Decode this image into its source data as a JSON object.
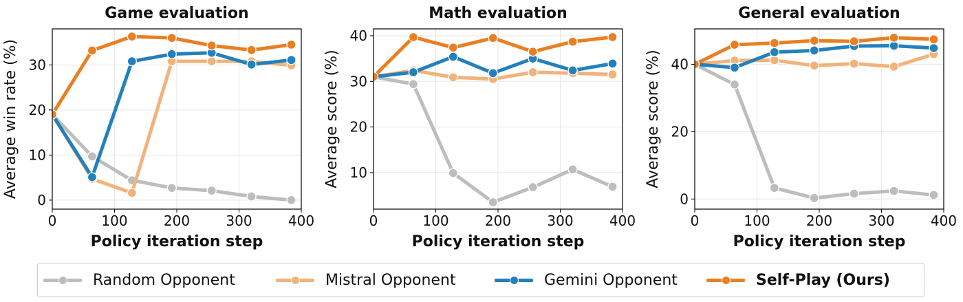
{
  "colors": {
    "random": "#bdbdbd",
    "mistral": "#f2b27a",
    "gemini": "#2380bd",
    "selfplay": "#ea7f22"
  },
  "legend": {
    "items": [
      {
        "key": "random",
        "label": "Random Opponent",
        "bold": false
      },
      {
        "key": "mistral",
        "label": "Mistral Opponent",
        "bold": false
      },
      {
        "key": "gemini",
        "label": "Gemini Opponent",
        "bold": false
      },
      {
        "key": "selfplay",
        "label": "Self-Play (Ours)",
        "bold": true
      }
    ]
  },
  "chart_data": [
    {
      "type": "line",
      "title": "Game evaluation",
      "xlabel": "Policy iteration step",
      "ylabel": "Average win rate (%)",
      "xlim": [
        0,
        400
      ],
      "ylim": [
        -2,
        38
      ],
      "xticks": [
        0,
        100,
        200,
        300,
        400
      ],
      "yticks": [
        0,
        10,
        20,
        30
      ],
      "grid": true,
      "series": [
        {
          "name": "Random Opponent",
          "key": "random",
          "points": [
            [
              0,
              19
            ],
            [
              64,
              9.7
            ],
            [
              128,
              4.4
            ],
            [
              192,
              2.7
            ],
            [
              256,
              2.1
            ],
            [
              320,
              0.8
            ],
            [
              384,
              0.0
            ]
          ]
        },
        {
          "name": "Mistral Opponent",
          "key": "mistral",
          "points": [
            [
              0,
              19
            ],
            [
              64,
              4.7
            ],
            [
              128,
              1.6
            ],
            [
              192,
              30.8
            ],
            [
              256,
              30.8
            ],
            [
              320,
              30.8
            ],
            [
              384,
              29.9
            ]
          ]
        },
        {
          "name": "Gemini Opponent",
          "key": "gemini",
          "points": [
            [
              0,
              19
            ],
            [
              64,
              5.1
            ],
            [
              128,
              30.8
            ],
            [
              192,
              32.4
            ],
            [
              256,
              32.7
            ],
            [
              320,
              30.1
            ],
            [
              384,
              31.1
            ]
          ]
        },
        {
          "name": "Self-Play (Ours)",
          "key": "selfplay",
          "points": [
            [
              0,
              19
            ],
            [
              64,
              33.2
            ],
            [
              128,
              36.3
            ],
            [
              192,
              36.0
            ],
            [
              256,
              34.3
            ],
            [
              320,
              33.3
            ],
            [
              384,
              34.5
            ]
          ]
        }
      ]
    },
    {
      "type": "line",
      "title": "Math evaluation",
      "xlabel": "Policy iteration step",
      "ylabel": "Average score (%)",
      "xlim": [
        0,
        400
      ],
      "ylim": [
        2,
        41.5
      ],
      "xticks": [
        0,
        100,
        200,
        300,
        400
      ],
      "yticks": [
        10,
        20,
        30,
        40
      ],
      "grid": true,
      "series": [
        {
          "name": "Random Opponent",
          "key": "random",
          "points": [
            [
              0,
              31
            ],
            [
              64,
              29.4
            ],
            [
              128,
              9.9
            ],
            [
              192,
              3.5
            ],
            [
              256,
              6.8
            ],
            [
              320,
              10.7
            ],
            [
              384,
              6.9
            ]
          ]
        },
        {
          "name": "Mistral Opponent",
          "key": "mistral",
          "points": [
            [
              0,
              31
            ],
            [
              64,
              32.4
            ],
            [
              128,
              30.9
            ],
            [
              192,
              30.5
            ],
            [
              256,
              32.0
            ],
            [
              320,
              31.8
            ],
            [
              384,
              31.5
            ]
          ]
        },
        {
          "name": "Gemini Opponent",
          "key": "gemini",
          "points": [
            [
              0,
              31
            ],
            [
              64,
              32.0
            ],
            [
              128,
              35.4
            ],
            [
              192,
              31.8
            ],
            [
              256,
              35.0
            ],
            [
              320,
              32.4
            ],
            [
              384,
              33.9
            ]
          ]
        },
        {
          "name": "Self-Play (Ours)",
          "key": "selfplay",
          "points": [
            [
              0,
              31
            ],
            [
              64,
              39.7
            ],
            [
              128,
              37.4
            ],
            [
              192,
              39.5
            ],
            [
              256,
              36.5
            ],
            [
              320,
              38.7
            ],
            [
              384,
              39.7
            ]
          ]
        }
      ]
    },
    {
      "type": "line",
      "title": "General evaluation",
      "xlabel": "Policy iteration step",
      "ylabel": "Average score (%)",
      "xlim": [
        0,
        400
      ],
      "ylim": [
        -3,
        50.5
      ],
      "xticks": [
        0,
        100,
        200,
        300,
        400
      ],
      "yticks": [
        0,
        20,
        40
      ],
      "grid": true,
      "series": [
        {
          "name": "Random Opponent",
          "key": "random",
          "points": [
            [
              0,
              40
            ],
            [
              64,
              34.0
            ],
            [
              128,
              3.3
            ],
            [
              192,
              0.3
            ],
            [
              256,
              1.6
            ],
            [
              320,
              2.4
            ],
            [
              384,
              1.2
            ]
          ]
        },
        {
          "name": "Mistral Opponent",
          "key": "mistral",
          "points": [
            [
              0,
              40
            ],
            [
              64,
              41.1
            ],
            [
              128,
              41.2
            ],
            [
              192,
              39.6
            ],
            [
              256,
              40.2
            ],
            [
              320,
              39.3
            ],
            [
              384,
              43.0
            ]
          ]
        },
        {
          "name": "Gemini Opponent",
          "key": "gemini",
          "points": [
            [
              0,
              40
            ],
            [
              64,
              39.0
            ],
            [
              128,
              43.6
            ],
            [
              192,
              44.1
            ],
            [
              256,
              45.4
            ],
            [
              320,
              45.5
            ],
            [
              384,
              44.8
            ]
          ]
        },
        {
          "name": "Self-Play (Ours)",
          "key": "selfplay",
          "points": [
            [
              0,
              40
            ],
            [
              64,
              45.8
            ],
            [
              128,
              46.3
            ],
            [
              192,
              47.0
            ],
            [
              256,
              46.8
            ],
            [
              320,
              47.9
            ],
            [
              384,
              47.4
            ]
          ]
        }
      ]
    }
  ]
}
